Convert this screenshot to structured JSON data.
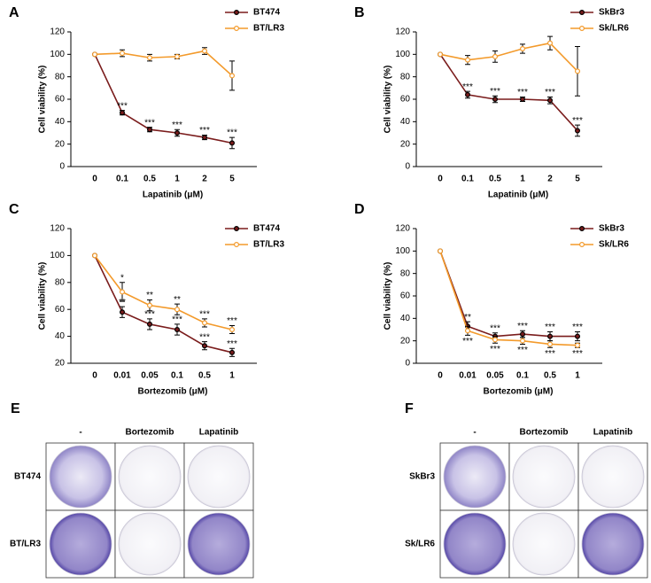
{
  "chart_data": [
    {
      "type": "line",
      "panel": "A",
      "xlabel": "Lapatinib (μM)",
      "ylabel": "Cell viability (%)",
      "categories": [
        "0",
        "0.1",
        "0.5",
        "1",
        "2",
        "5"
      ],
      "ylim": [
        0,
        120
      ],
      "yticks": [
        0,
        20,
        40,
        60,
        80,
        100,
        120
      ],
      "legend": "upper right",
      "series": [
        {
          "name": "BT474",
          "color": "#7a1c1c",
          "values": [
            100,
            48,
            33,
            30,
            26,
            21
          ],
          "errors": [
            0,
            2,
            2,
            3,
            2,
            5
          ],
          "stars": [
            null,
            "***",
            "***",
            "***",
            "***",
            "***"
          ]
        },
        {
          "name": "BT/LR3",
          "color": "#f39a2b",
          "values": [
            100,
            101,
            97,
            98,
            103,
            81
          ],
          "errors": [
            0,
            3,
            3,
            2,
            3,
            13
          ],
          "stars": [
            null,
            null,
            null,
            null,
            null,
            null
          ]
        }
      ]
    },
    {
      "type": "line",
      "panel": "B",
      "xlabel": "Lapatinib (μM)",
      "ylabel": "Cell viability (%)",
      "categories": [
        "0",
        "0.1",
        "0.5",
        "1",
        "2",
        "5"
      ],
      "ylim": [
        0,
        120
      ],
      "yticks": [
        0,
        20,
        40,
        60,
        80,
        100,
        120
      ],
      "legend": "upper right",
      "series": [
        {
          "name": "SkBr3",
          "color": "#7a1c1c",
          "values": [
            100,
            64,
            60,
            60,
            59,
            32
          ],
          "errors": [
            0,
            3,
            3,
            2,
            3,
            5
          ],
          "stars": [
            null,
            "***",
            "***",
            "***",
            "***",
            "***"
          ]
        },
        {
          "name": "Sk/LR6",
          "color": "#f39a2b",
          "values": [
            100,
            95,
            98,
            105,
            110,
            85
          ],
          "errors": [
            0,
            4,
            5,
            4,
            6,
            22
          ],
          "stars": [
            null,
            null,
            null,
            null,
            null,
            null
          ]
        }
      ]
    },
    {
      "type": "line",
      "panel": "C",
      "xlabel": "Bortezomib (μM)",
      "ylabel": "Cell viability (%)",
      "categories": [
        "0",
        "0.01",
        "0.05",
        "0.1",
        "0.5",
        "1"
      ],
      "ylim": [
        20,
        120
      ],
      "yticks": [
        20,
        40,
        60,
        80,
        100,
        120
      ],
      "legend": "upper right",
      "series": [
        {
          "name": "BT474",
          "color": "#7a1c1c",
          "values": [
            100,
            58,
            49,
            45,
            33,
            28
          ],
          "errors": [
            0,
            4,
            4,
            4,
            3,
            3
          ],
          "stars": [
            null,
            "**",
            "***",
            "***",
            "***",
            "***"
          ]
        },
        {
          "name": "BT/LR3",
          "color": "#f39a2b",
          "values": [
            100,
            73,
            63,
            60,
            50,
            45
          ],
          "errors": [
            0,
            7,
            4,
            4,
            3,
            3
          ],
          "stars": [
            null,
            "*",
            "**",
            "**",
            "***",
            "***"
          ]
        }
      ]
    },
    {
      "type": "line",
      "panel": "D",
      "xlabel": "Bortezomib (μM)",
      "ylabel": "Cell viability (%)",
      "categories": [
        "0",
        "0.01",
        "0.05",
        "0.1",
        "0.5",
        "1"
      ],
      "ylim": [
        0,
        120
      ],
      "yticks": [
        0,
        20,
        40,
        60,
        80,
        100,
        120
      ],
      "legend": "upper right",
      "series": [
        {
          "name": "SkBr3",
          "color": "#7a1c1c",
          "values": [
            100,
            33,
            24,
            26,
            24,
            24
          ],
          "errors": [
            0,
            4,
            3,
            3,
            4,
            4
          ],
          "stars": [
            null,
            "**",
            "***",
            "***",
            "***",
            "***"
          ]
        },
        {
          "name": "Sk/LR6",
          "color": "#f39a2b",
          "values": [
            100,
            29,
            21,
            20,
            17,
            16
          ],
          "errors": [
            0,
            4,
            3,
            3,
            3,
            2
          ],
          "stars": [
            null,
            "***",
            "***",
            "***",
            "***",
            "***"
          ]
        }
      ]
    }
  ],
  "colony_panels": [
    {
      "panel": "E",
      "columns": [
        "-",
        "Bortezomib",
        "Lapatinib"
      ],
      "rows": [
        "BT474",
        "BT/LR3"
      ]
    },
    {
      "panel": "F",
      "columns": [
        "-",
        "Bortezomib",
        "Lapatinib"
      ],
      "rows": [
        "SkBr3",
        "Sk/LR6"
      ]
    }
  ]
}
